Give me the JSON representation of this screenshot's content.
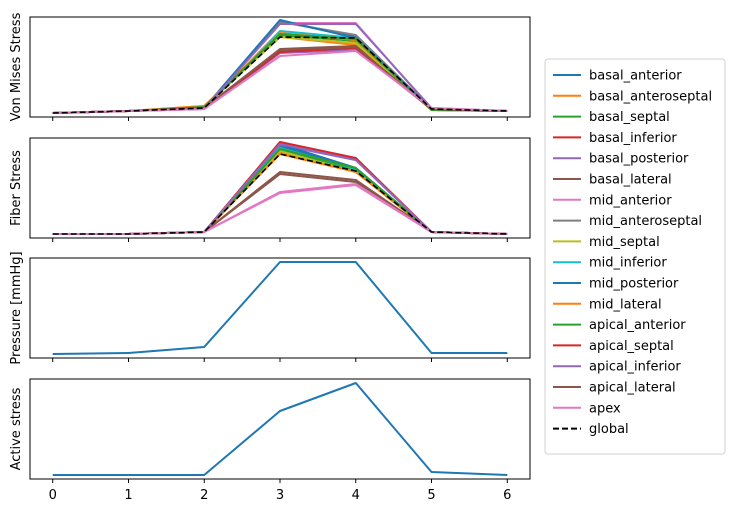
{
  "chart_data": [
    {
      "type": "line",
      "ylabel": "Von Mises Stress",
      "x": [
        0,
        1,
        2,
        3,
        4,
        5,
        6
      ],
      "ylim": [
        0,
        1
      ],
      "show_xtick_labels": false,
      "series": [
        {
          "name": "basal_anterior",
          "color": "#1f77b4",
          "dash": false,
          "values": [
            0.04,
            0.06,
            0.09,
            0.96,
            0.8,
            0.08,
            0.06
          ]
        },
        {
          "name": "basal_anteroseptal",
          "color": "#ff7f0e",
          "dash": false,
          "values": [
            0.04,
            0.06,
            0.11,
            0.8,
            0.72,
            0.07,
            0.06
          ]
        },
        {
          "name": "basal_septal",
          "color": "#2ca02c",
          "dash": false,
          "values": [
            0.04,
            0.06,
            0.1,
            0.82,
            0.76,
            0.07,
            0.06
          ]
        },
        {
          "name": "basal_inferior",
          "color": "#d62728",
          "dash": false,
          "values": [
            0.04,
            0.06,
            0.09,
            0.67,
            0.7,
            0.08,
            0.06
          ]
        },
        {
          "name": "basal_posterior",
          "color": "#9467bd",
          "dash": false,
          "values": [
            0.04,
            0.06,
            0.08,
            0.64,
            0.67,
            0.08,
            0.06
          ]
        },
        {
          "name": "basal_lateral",
          "color": "#8c564b",
          "dash": false,
          "values": [
            0.04,
            0.06,
            0.09,
            0.68,
            0.71,
            0.08,
            0.06
          ]
        },
        {
          "name": "mid_anterior",
          "color": "#e377c2",
          "dash": false,
          "values": [
            0.04,
            0.06,
            0.08,
            0.94,
            0.94,
            0.08,
            0.06
          ]
        },
        {
          "name": "mid_anteroseptal",
          "color": "#7f7f7f",
          "dash": false,
          "values": [
            0.04,
            0.06,
            0.09,
            0.95,
            0.82,
            0.08,
            0.06
          ]
        },
        {
          "name": "mid_septal",
          "color": "#bcbd22",
          "dash": false,
          "values": [
            0.04,
            0.06,
            0.1,
            0.8,
            0.74,
            0.07,
            0.06
          ]
        },
        {
          "name": "mid_inferior",
          "color": "#17becf",
          "dash": false,
          "values": [
            0.04,
            0.06,
            0.09,
            0.86,
            0.79,
            0.08,
            0.06
          ]
        },
        {
          "name": "mid_posterior",
          "color": "#1f77b4",
          "dash": false,
          "values": [
            0.04,
            0.06,
            0.09,
            0.97,
            0.79,
            0.08,
            0.06
          ]
        },
        {
          "name": "mid_lateral",
          "color": "#ff7f0e",
          "dash": false,
          "values": [
            0.04,
            0.06,
            0.11,
            0.84,
            0.77,
            0.07,
            0.06
          ]
        },
        {
          "name": "apical_anterior",
          "color": "#2ca02c",
          "dash": false,
          "values": [
            0.04,
            0.06,
            0.1,
            0.83,
            0.78,
            0.07,
            0.06
          ]
        },
        {
          "name": "apical_septal",
          "color": "#d62728",
          "dash": false,
          "values": [
            0.04,
            0.06,
            0.09,
            0.65,
            0.69,
            0.08,
            0.06
          ]
        },
        {
          "name": "apical_inferior",
          "color": "#9467bd",
          "dash": false,
          "values": [
            0.04,
            0.06,
            0.08,
            0.93,
            0.93,
            0.09,
            0.06
          ]
        },
        {
          "name": "apical_lateral",
          "color": "#8c564b",
          "dash": false,
          "values": [
            0.04,
            0.06,
            0.09,
            0.67,
            0.7,
            0.08,
            0.06
          ]
        },
        {
          "name": "apex",
          "color": "#e377c2",
          "dash": false,
          "values": [
            0.04,
            0.06,
            0.08,
            0.61,
            0.66,
            0.09,
            0.06
          ]
        },
        {
          "name": "global",
          "color": "#000000",
          "dash": true,
          "values": [
            0.04,
            0.06,
            0.09,
            0.8,
            0.79,
            0.08,
            0.06
          ]
        }
      ]
    },
    {
      "type": "line",
      "ylabel": "Fiber Stress",
      "x": [
        0,
        1,
        2,
        3,
        4,
        5,
        6
      ],
      "ylim": [
        0,
        1
      ],
      "show_xtick_labels": false,
      "series": [
        {
          "name": "basal_anterior",
          "color": "#1f77b4",
          "dash": false,
          "values": [
            0.04,
            0.04,
            0.06,
            0.92,
            0.7,
            0.06,
            0.04
          ]
        },
        {
          "name": "basal_anteroseptal",
          "color": "#ff7f0e",
          "dash": false,
          "values": [
            0.04,
            0.04,
            0.06,
            0.86,
            0.67,
            0.06,
            0.04
          ]
        },
        {
          "name": "basal_septal",
          "color": "#2ca02c",
          "dash": false,
          "values": [
            0.04,
            0.04,
            0.06,
            0.88,
            0.68,
            0.06,
            0.04
          ]
        },
        {
          "name": "basal_inferior",
          "color": "#d62728",
          "dash": false,
          "values": [
            0.04,
            0.04,
            0.06,
            0.95,
            0.79,
            0.06,
            0.04
          ]
        },
        {
          "name": "basal_posterior",
          "color": "#9467bd",
          "dash": false,
          "values": [
            0.04,
            0.04,
            0.06,
            0.93,
            0.78,
            0.06,
            0.04
          ]
        },
        {
          "name": "basal_lateral",
          "color": "#8c564b",
          "dash": false,
          "values": [
            0.04,
            0.04,
            0.06,
            0.64,
            0.56,
            0.06,
            0.04
          ]
        },
        {
          "name": "mid_anterior",
          "color": "#e377c2",
          "dash": false,
          "values": [
            0.04,
            0.04,
            0.06,
            0.45,
            0.53,
            0.06,
            0.04
          ]
        },
        {
          "name": "mid_anteroseptal",
          "color": "#7f7f7f",
          "dash": false,
          "values": [
            0.04,
            0.04,
            0.06,
            0.96,
            0.78,
            0.06,
            0.04
          ]
        },
        {
          "name": "mid_septal",
          "color": "#bcbd22",
          "dash": false,
          "values": [
            0.04,
            0.04,
            0.06,
            0.87,
            0.66,
            0.06,
            0.04
          ]
        },
        {
          "name": "mid_inferior",
          "color": "#17becf",
          "dash": false,
          "values": [
            0.04,
            0.04,
            0.06,
            0.9,
            0.69,
            0.06,
            0.04
          ]
        },
        {
          "name": "mid_posterior",
          "color": "#1f77b4",
          "dash": false,
          "values": [
            0.04,
            0.04,
            0.06,
            0.94,
            0.7,
            0.06,
            0.04
          ]
        },
        {
          "name": "mid_lateral",
          "color": "#ff7f0e",
          "dash": false,
          "values": [
            0.04,
            0.04,
            0.06,
            0.84,
            0.66,
            0.06,
            0.04
          ]
        },
        {
          "name": "apical_anterior",
          "color": "#2ca02c",
          "dash": false,
          "values": [
            0.04,
            0.04,
            0.06,
            0.89,
            0.7,
            0.06,
            0.04
          ]
        },
        {
          "name": "apical_septal",
          "color": "#d62728",
          "dash": false,
          "values": [
            0.04,
            0.04,
            0.06,
            0.96,
            0.8,
            0.06,
            0.04
          ]
        },
        {
          "name": "apical_inferior",
          "color": "#9467bd",
          "dash": false,
          "values": [
            0.04,
            0.04,
            0.06,
            0.94,
            0.78,
            0.06,
            0.04
          ]
        },
        {
          "name": "apical_lateral",
          "color": "#8c564b",
          "dash": false,
          "values": [
            0.04,
            0.04,
            0.06,
            0.66,
            0.58,
            0.06,
            0.04
          ]
        },
        {
          "name": "apex",
          "color": "#e377c2",
          "dash": false,
          "values": [
            0.04,
            0.04,
            0.06,
            0.46,
            0.54,
            0.06,
            0.04
          ]
        },
        {
          "name": "global",
          "color": "#000000",
          "dash": true,
          "values": [
            0.04,
            0.04,
            0.06,
            0.84,
            0.67,
            0.06,
            0.04
          ]
        }
      ]
    },
    {
      "type": "line",
      "ylabel": "Pressure [mmHg]",
      "x": [
        0,
        1,
        2,
        3,
        4,
        5,
        6
      ],
      "ylim": [
        0,
        1
      ],
      "show_xtick_labels": false,
      "series": [
        {
          "name": "pressure",
          "color": "#1f77b4",
          "dash": false,
          "values": [
            0.04,
            0.05,
            0.11,
            0.96,
            0.96,
            0.05,
            0.05
          ]
        }
      ]
    },
    {
      "type": "line",
      "ylabel": "Active stress",
      "x": [
        0,
        1,
        2,
        3,
        4,
        5,
        6
      ],
      "ylim": [
        0,
        1
      ],
      "show_xtick_labels": true,
      "series": [
        {
          "name": "active_stress",
          "color": "#1f77b4",
          "dash": false,
          "values": [
            0.04,
            0.04,
            0.04,
            0.68,
            0.96,
            0.07,
            0.04
          ]
        }
      ]
    }
  ],
  "legend": {
    "placement": "right",
    "entries": [
      {
        "label": "basal_anterior",
        "color": "#1f77b4",
        "dash": false
      },
      {
        "label": "basal_anteroseptal",
        "color": "#ff7f0e",
        "dash": false
      },
      {
        "label": "basal_septal",
        "color": "#2ca02c",
        "dash": false
      },
      {
        "label": "basal_inferior",
        "color": "#d62728",
        "dash": false
      },
      {
        "label": "basal_posterior",
        "color": "#9467bd",
        "dash": false
      },
      {
        "label": "basal_lateral",
        "color": "#8c564b",
        "dash": false
      },
      {
        "label": "mid_anterior",
        "color": "#e377c2",
        "dash": false
      },
      {
        "label": "mid_anteroseptal",
        "color": "#7f7f7f",
        "dash": false
      },
      {
        "label": "mid_septal",
        "color": "#bcbd22",
        "dash": false
      },
      {
        "label": "mid_inferior",
        "color": "#17becf",
        "dash": false
      },
      {
        "label": "mid_posterior",
        "color": "#1f77b4",
        "dash": false
      },
      {
        "label": "mid_lateral",
        "color": "#ff7f0e",
        "dash": false
      },
      {
        "label": "apical_anterior",
        "color": "#2ca02c",
        "dash": false
      },
      {
        "label": "apical_septal",
        "color": "#d62728",
        "dash": false
      },
      {
        "label": "apical_inferior",
        "color": "#9467bd",
        "dash": false
      },
      {
        "label": "apical_lateral",
        "color": "#8c564b",
        "dash": false
      },
      {
        "label": "apex",
        "color": "#e377c2",
        "dash": false
      },
      {
        "label": "global",
        "color": "#000000",
        "dash": true
      }
    ]
  }
}
